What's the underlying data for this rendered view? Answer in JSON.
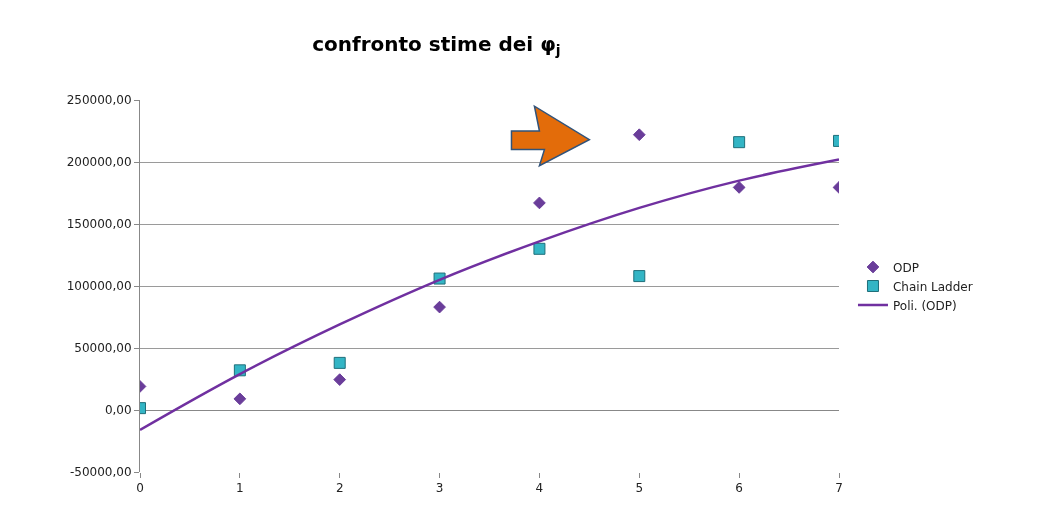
{
  "chart_data": {
    "type": "scatter",
    "title": "confronto stime dei φ$_{j}$",
    "x": [
      0,
      1,
      2,
      3,
      4,
      5,
      6,
      7
    ],
    "series": [
      {
        "name": "ODP",
        "color": "#6a3d9a",
        "marker": "diamond",
        "values": [
          19000,
          9000,
          24500,
          83000,
          167000,
          222000,
          179500,
          179500
        ]
      },
      {
        "name": "Chain Ladder",
        "color": "#33b5c5",
        "marker": "square",
        "values": [
          1500,
          32000,
          38000,
          106000,
          130000,
          108000,
          216000,
          217000
        ]
      },
      {
        "name": "Poli. (ODP)",
        "type": "line",
        "color": "#7030a0",
        "marker": "none",
        "line_style": "solid",
        "values": [
          -16000,
          29000,
          69000,
          105000,
          136000,
          163000,
          185000,
          202000
        ]
      }
    ],
    "xlim": [
      0,
      7
    ],
    "xticks": [
      0,
      1,
      2,
      3,
      4,
      5,
      6,
      7
    ],
    "ylim": [
      -50000,
      250000
    ],
    "yticks": [
      {
        "value": -50000,
        "label": "-50000,00"
      },
      {
        "value": 0,
        "label": "0,00"
      },
      {
        "value": 50000,
        "label": "50000,00"
      },
      {
        "value": 100000,
        "label": "100000,00"
      },
      {
        "value": 150000,
        "label": "150000,00"
      },
      {
        "value": 200000,
        "label": "200000,00"
      },
      {
        "value": 250000,
        "label": "250000,00"
      }
    ],
    "grid": "y",
    "legend": "right"
  }
}
